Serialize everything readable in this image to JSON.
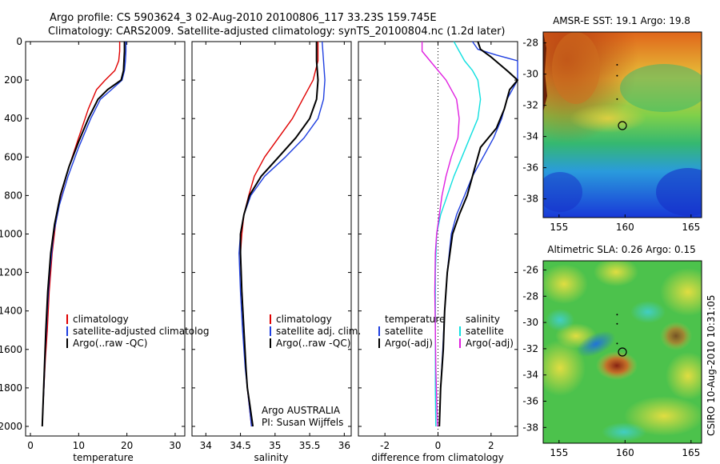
{
  "header": {
    "line1": "Argo profile: CS 5903624_3 02-Aug-2010 20100806_117 33.23S 159.745E",
    "line2": "Climatology: CARS2009. Satellite-adjusted climatology: synTS_20100804.nc (1.2d later)"
  },
  "side_text": "CSIRO 10-Aug-2010 10:31:05",
  "colors": {
    "climatology": "#e00000",
    "satellite": "#1f3fe0",
    "argo": "#000000",
    "sat_diff_salinity": "#10e0e0",
    "argo_adj_salinity": "#e020e0"
  },
  "chart_data": [
    {
      "id": "temperature",
      "type": "line",
      "xlabel": "temperature",
      "ylabel": "",
      "xlim": [
        -1,
        32
      ],
      "ylim": [
        2050,
        0
      ],
      "xticks": [
        0,
        10,
        20,
        30
      ],
      "yticks": [
        0,
        200,
        400,
        600,
        800,
        1000,
        1200,
        1400,
        1600,
        1800,
        2000
      ],
      "legend": [
        "climatology",
        "satellite-adjusted climatolog",
        "Argo(..raw -QC)"
      ],
      "series": [
        {
          "name": "climatology",
          "color": "#e00000",
          "x": [
            18.5,
            18.5,
            18.3,
            17.5,
            15.5,
            13.7,
            12,
            10,
            8,
            6.3,
            5.2,
            4.5,
            3.9,
            3.5,
            3.1,
            2.8,
            2.6,
            2.45
          ],
          "y": [
            0,
            50,
            100,
            150,
            200,
            250,
            350,
            500,
            650,
            800,
            950,
            1100,
            1300,
            1500,
            1650,
            1800,
            1900,
            2000
          ]
        },
        {
          "name": "satellite-adjusted climatolog",
          "color": "#1f3fe0",
          "x": [
            19.8,
            19.8,
            19.7,
            19.5,
            19,
            16.8,
            14.5,
            12.5,
            10,
            7.8,
            6,
            4.8,
            4,
            3.5,
            3.1,
            2.8,
            2.6,
            2.45
          ],
          "y": [
            0,
            50,
            100,
            150,
            200,
            250,
            300,
            400,
            550,
            700,
            850,
            1000,
            1200,
            1400,
            1600,
            1800,
            1900,
            2000
          ]
        },
        {
          "name": "Argo(..raw -QC)",
          "color": "#000000",
          "x": [
            19.5,
            19.5,
            19.4,
            19.3,
            18.8,
            16,
            14,
            12,
            10,
            8,
            6.2,
            5,
            4.2,
            3.6,
            3.2,
            2.9,
            2.6,
            2.45
          ],
          "y": [
            0,
            50,
            100,
            150,
            200,
            250,
            300,
            400,
            520,
            650,
            800,
            950,
            1100,
            1300,
            1500,
            1700,
            1900,
            2000
          ]
        }
      ]
    },
    {
      "id": "salinity",
      "type": "line",
      "xlabel": "salinity",
      "ylabel": "",
      "xlim": [
        33.8,
        36.1
      ],
      "ylim": [
        2050,
        0
      ],
      "xticks": [
        34,
        34.5,
        35,
        35.5,
        36
      ],
      "legend": [
        "climatology",
        "satellite adj. clim.",
        "Argo(..raw -QC)"
      ],
      "annotation": [
        "Argo AUSTRALIA",
        "PI: Susan Wijffels"
      ],
      "series": [
        {
          "name": "climatology",
          "color": "#e00000",
          "x": [
            35.62,
            35.62,
            35.55,
            35.4,
            35.25,
            35.05,
            34.85,
            34.7,
            34.62,
            34.55,
            34.52,
            34.5,
            34.52,
            34.55,
            34.58,
            34.6,
            34.63,
            34.66
          ],
          "y": [
            0,
            100,
            200,
            300,
            400,
            500,
            600,
            700,
            800,
            900,
            1000,
            1100,
            1300,
            1500,
            1700,
            1800,
            1900,
            2000
          ]
        },
        {
          "name": "satellite adj. clim.",
          "color": "#1f3fe0",
          "x": [
            35.68,
            35.7,
            35.72,
            35.7,
            35.62,
            35.42,
            35.15,
            34.85,
            34.65,
            34.55,
            34.5,
            34.48,
            34.5,
            34.53,
            34.57,
            34.6,
            34.63,
            34.66
          ],
          "y": [
            0,
            100,
            200,
            300,
            400,
            500,
            600,
            700,
            800,
            900,
            1000,
            1100,
            1300,
            1500,
            1700,
            1800,
            1900,
            2000
          ]
        },
        {
          "name": "Argo(..raw -QC)",
          "color": "#000000",
          "x": [
            35.6,
            35.6,
            35.62,
            35.6,
            35.5,
            35.3,
            35.05,
            34.8,
            34.63,
            34.55,
            34.5,
            34.5,
            34.52,
            34.55,
            34.58,
            34.6,
            34.64,
            34.68
          ],
          "y": [
            0,
            100,
            200,
            300,
            400,
            500,
            600,
            700,
            800,
            900,
            1000,
            1100,
            1300,
            1500,
            1700,
            1800,
            1900,
            2000
          ]
        }
      ]
    },
    {
      "id": "difference",
      "type": "line",
      "xlabel": "difference from climatology",
      "ylabel": "",
      "xlim": [
        -3,
        3
      ],
      "ylim": [
        2050,
        0
      ],
      "xticks": [
        -2,
        0,
        2
      ],
      "legend_temperature_title": "temperature",
      "legend_temperature": [
        "satellite",
        "Argo(-adj)"
      ],
      "legend_salinity_title": "salinity",
      "legend_salinity": [
        "satellite",
        "Argo(-adj)"
      ],
      "series": [
        {
          "name": "temperature satellite",
          "color": "#1f3fe0",
          "x": [
            1.3,
            1.5,
            2.2,
            3.0,
            3.0,
            2.6,
            2.4,
            2.1,
            1.7,
            1.3,
            1.0,
            0.7,
            0.5,
            0.35,
            0.25,
            0.18,
            0.1,
            0.05
          ],
          "y": [
            0,
            40,
            70,
            100,
            200,
            300,
            400,
            500,
            600,
            700,
            800,
            900,
            1000,
            1200,
            1400,
            1600,
            1800,
            2000
          ]
        },
        {
          "name": "temperature Argo(-adj)",
          "color": "#000000",
          "x": [
            1.5,
            1.6,
            2.0,
            2.6,
            3.0,
            2.7,
            2.5,
            2.2,
            1.6,
            1.4,
            1.1,
            0.8,
            0.55,
            0.35,
            0.25,
            0.2,
            0.1,
            0.05
          ],
          "y": [
            0,
            40,
            80,
            150,
            200,
            250,
            350,
            450,
            550,
            650,
            800,
            900,
            1000,
            1200,
            1400,
            1600,
            1800,
            2000
          ]
        },
        {
          "name": "salinity satellite",
          "color": "#10e0e0",
          "x": [
            0.6,
            0.8,
            1.0,
            1.3,
            1.5,
            1.6,
            1.5,
            1.2,
            0.9,
            0.6,
            0.35,
            0.1,
            -0.05,
            -0.1,
            -0.1,
            -0.1,
            -0.1,
            -0.08
          ],
          "y": [
            0,
            50,
            100,
            150,
            200,
            300,
            400,
            500,
            600,
            700,
            800,
            900,
            1000,
            1200,
            1400,
            1600,
            1800,
            2000
          ]
        },
        {
          "name": "salinity Argo(-adj)",
          "color": "#e020e0",
          "x": [
            -0.6,
            -0.6,
            -0.3,
            0.3,
            0.7,
            0.8,
            0.75,
            0.5,
            0.3,
            0.15,
            0.05,
            -0.05,
            -0.1,
            -0.12,
            -0.1,
            -0.08,
            -0.05,
            -0.02
          ],
          "y": [
            0,
            50,
            100,
            200,
            300,
            400,
            500,
            600,
            700,
            800,
            900,
            1000,
            1100,
            1300,
            1500,
            1700,
            1850,
            2000
          ]
        }
      ]
    },
    {
      "id": "sst_map",
      "type": "heatmap",
      "title": "AMSR-E SST: 19.1 Argo: 19.8",
      "xlim": [
        153.8,
        165.8
      ],
      "ylim": [
        -39.2,
        -27.3
      ],
      "xticks": [
        155,
        160,
        165
      ],
      "yticks": [
        -28,
        -30,
        -32,
        -34,
        -36,
        -38
      ],
      "marker": {
        "lon": 159.745,
        "lat": -33.23
      }
    },
    {
      "id": "sla_map",
      "type": "heatmap",
      "title": "Altimetric SLA: 0.26 Argo: 0.15",
      "xlim": [
        153.8,
        165.8
      ],
      "ylim": [
        -39.2,
        -25.3
      ],
      "xticks": [
        155,
        160,
        165
      ],
      "yticks": [
        -26,
        -28,
        -30,
        -32,
        -34,
        -36,
        -38
      ],
      "marker": {
        "lon": 159.745,
        "lat": -33.23
      }
    }
  ]
}
